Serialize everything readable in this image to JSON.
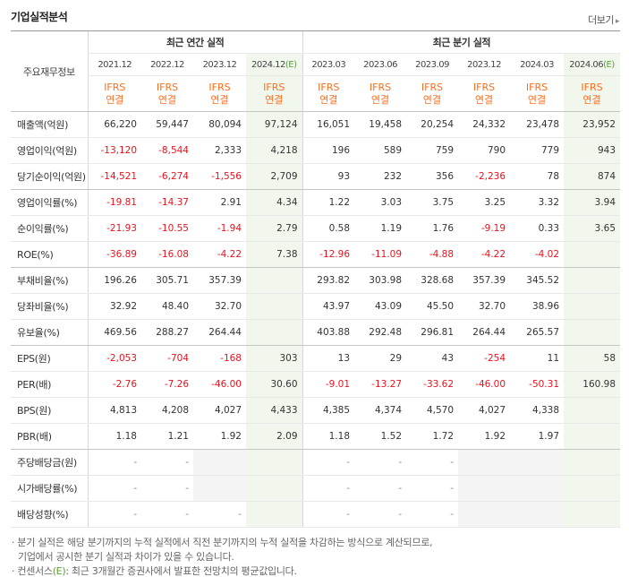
{
  "header": {
    "title": "기업실적분석",
    "more_label": "더보기",
    "more_icon": "chevron-right-icon"
  },
  "columns": {
    "label_header": "주요재무정보",
    "annual_group": "최근 연간 실적",
    "quarter_group": "최근 분기 실적",
    "annual_periods": [
      "2021.12",
      "2022.12",
      "2023.12",
      "2024.12"
    ],
    "quarter_periods": [
      "2023.03",
      "2023.06",
      "2023.09",
      "2023.12",
      "2024.03",
      "2024.06"
    ],
    "estimate_mark": "(E)",
    "ifrs_top": "IFRS",
    "ifrs_bottom": "연결"
  },
  "rows": [
    {
      "label": "매출액(억원)",
      "values": [
        "66,220",
        "59,447",
        "80,094",
        "97,124",
        "16,051",
        "19,458",
        "20,254",
        "24,332",
        "23,478",
        "23,952"
      ]
    },
    {
      "label": "영업이익(억원)",
      "values": [
        "-13,120",
        "-8,544",
        "2,333",
        "4,218",
        "196",
        "589",
        "759",
        "790",
        "779",
        "943"
      ]
    },
    {
      "label": "당기순이익(억원)",
      "values": [
        "-14,521",
        "-6,274",
        "-1,556",
        "2,709",
        "93",
        "232",
        "356",
        "-2,236",
        "78",
        "874"
      ]
    },
    {
      "label": "영업이익률(%)",
      "values": [
        "-19.81",
        "-14.37",
        "2.91",
        "4.34",
        "1.22",
        "3.03",
        "3.75",
        "3.25",
        "3.32",
        "3.94"
      ]
    },
    {
      "label": "순이익률(%)",
      "values": [
        "-21.93",
        "-10.55",
        "-1.94",
        "2.79",
        "0.58",
        "1.19",
        "1.76",
        "-9.19",
        "0.33",
        "3.65"
      ]
    },
    {
      "label": "ROE(%)",
      "values": [
        "-36.89",
        "-16.08",
        "-4.22",
        "7.38",
        "-12.96",
        "-11.09",
        "-4.88",
        "-4.22",
        "-4.02",
        ""
      ]
    },
    {
      "label": "부채비율(%)",
      "values": [
        "196.26",
        "305.71",
        "357.39",
        "",
        "293.82",
        "303.98",
        "328.68",
        "357.39",
        "345.52",
        ""
      ]
    },
    {
      "label": "당좌비율(%)",
      "values": [
        "32.92",
        "48.40",
        "32.70",
        "",
        "43.97",
        "43.09",
        "45.50",
        "32.70",
        "38.96",
        ""
      ]
    },
    {
      "label": "유보율(%)",
      "values": [
        "469.56",
        "288.27",
        "264.44",
        "",
        "403.88",
        "292.48",
        "296.81",
        "264.44",
        "265.57",
        ""
      ]
    },
    {
      "label": "EPS(원)",
      "values": [
        "-2,053",
        "-704",
        "-168",
        "303",
        "13",
        "29",
        "43",
        "-254",
        "11",
        "58"
      ]
    },
    {
      "label": "PER(배)",
      "values": [
        "-2.76",
        "-7.26",
        "-46.00",
        "30.60",
        "-9.01",
        "-13.27",
        "-33.62",
        "-46.00",
        "-50.31",
        "160.98"
      ]
    },
    {
      "label": "BPS(원)",
      "values": [
        "4,813",
        "4,208",
        "4,027",
        "4,433",
        "4,385",
        "4,374",
        "4,570",
        "4,027",
        "4,338",
        ""
      ]
    },
    {
      "label": "PBR(배)",
      "values": [
        "1.18",
        "1.21",
        "1.92",
        "2.09",
        "1.18",
        "1.52",
        "1.72",
        "1.92",
        "1.97",
        ""
      ]
    },
    {
      "label": "주당배당금(원)",
      "values": [
        "-",
        "-",
        "",
        "",
        "-",
        "-",
        "-",
        "",
        "",
        ""
      ]
    },
    {
      "label": "시가배당률(%)",
      "values": [
        "-",
        "-",
        "",
        "",
        "-",
        "-",
        "-",
        "",
        "",
        ""
      ]
    },
    {
      "label": "배당성향(%)",
      "values": [
        "-",
        "-",
        "-",
        "",
        "-",
        "-",
        "-",
        "",
        "",
        ""
      ]
    }
  ],
  "notes": {
    "line1": "· 분기 실적은 해당 분기까지의 누적 실적에서 직전 분기까지의 누적 실적을 차감하는 방식으로 계산되므로,",
    "line2": "기업에서 공시한 분기 실적과 차이가 있을 수 있습니다.",
    "line3_prefix": "· 컨센서스",
    "line3_mark": "(E)",
    "line3_suffix": ": 최근 3개월간 증권사에서 발표한 전망치의 평균값입니다."
  },
  "colors": {
    "negative": "#e8121e",
    "ifrs": "#ff6d1a",
    "estimate_bg": "#f1f7ed",
    "estimate_text": "#5a9e36",
    "blank_bg": "#f4f4f4"
  }
}
